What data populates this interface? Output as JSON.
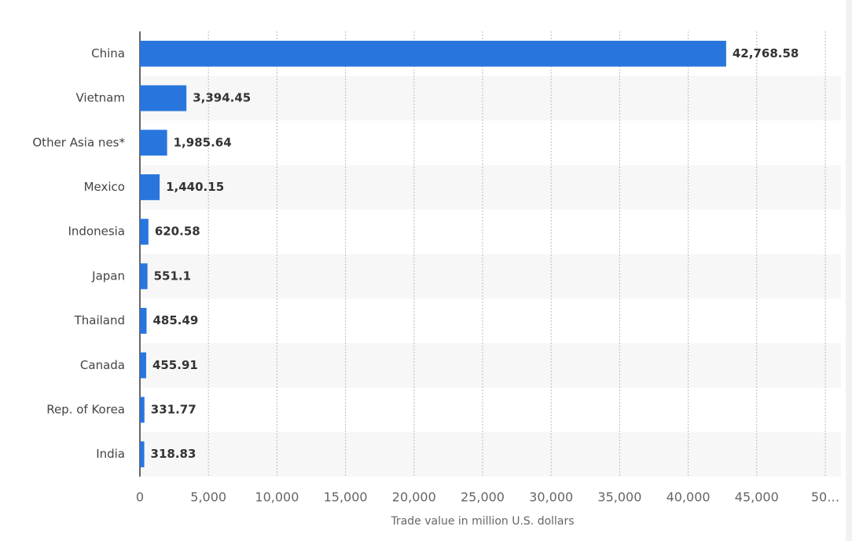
{
  "chart_data": {
    "type": "bar",
    "orientation": "horizontal",
    "x_label": "Trade value in million U.S. dollars",
    "categories": [
      "China",
      "Vietnam",
      "Other Asia nes*",
      "Mexico",
      "Indonesia",
      "Japan",
      "Thailand",
      "Canada",
      "Rep. of Korea",
      "India"
    ],
    "values": [
      42768.58,
      3394.45,
      1985.64,
      1440.15,
      620.58,
      551.1,
      485.49,
      455.91,
      331.77,
      318.83
    ],
    "value_labels": [
      "42,768.58",
      "3,394.45",
      "1,985.64",
      "1,440.15",
      "620.58",
      "551.1",
      "485.49",
      "455.91",
      "331.77",
      "318.83"
    ],
    "color": "#2876dd",
    "xlim": [
      0,
      50000
    ],
    "xticks": [
      0,
      {
        "value": 5000,
        "label": "5,000"
      },
      {
        "value": 10000,
        "label": "10,000"
      },
      {
        "value": 15000,
        "label": "15,000"
      },
      {
        "value": 20000,
        "label": "20,000"
      },
      {
        "value": 25000,
        "label": "25,000"
      },
      {
        "value": 30000,
        "label": "30,000"
      },
      {
        "value": 35000,
        "label": "35,000"
      },
      {
        "value": 40000,
        "label": "40,000"
      },
      {
        "value": 45000,
        "label": "45,000"
      },
      {
        "value": 50000,
        "label": "50…"
      }
    ],
    "grid": true
  }
}
